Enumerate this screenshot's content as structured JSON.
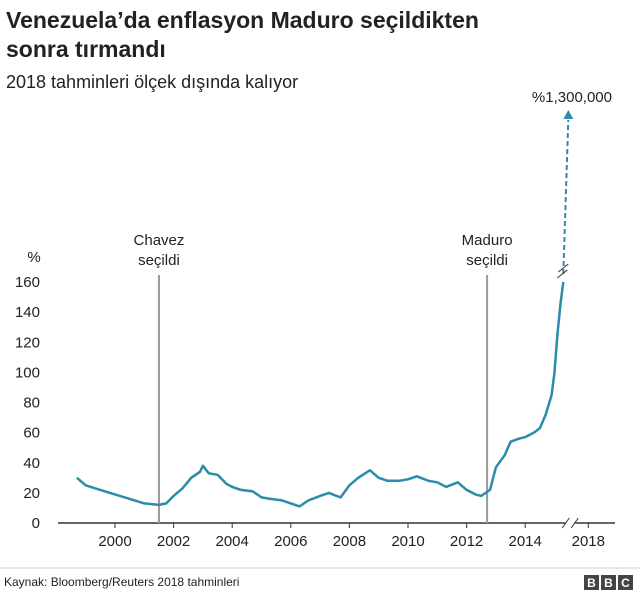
{
  "chart_data": {
    "type": "line",
    "title": [
      "Venezuela’da enflasyon Maduro seçildikten",
      "sonra tırmandı"
    ],
    "subtitle": "2018 tahminleri ölçek dışında kalıyor",
    "y_unit": "%",
    "forecast_label": "%1,300,000",
    "events": [
      {
        "x": 2001.5,
        "label": [
          "Chavez",
          "seçildi"
        ]
      },
      {
        "x": 2012.7,
        "label": [
          "Maduro",
          "seçildi"
        ]
      }
    ],
    "x": [
      1998.7,
      1999.0,
      1999.5,
      2000.0,
      2000.5,
      2001.0,
      2001.5,
      2001.75,
      2002.0,
      2002.3,
      2002.6,
      2002.9,
      2003.0,
      2003.2,
      2003.5,
      2003.8,
      2004.0,
      2004.3,
      2004.7,
      2005.0,
      2005.3,
      2005.7,
      2006.0,
      2006.3,
      2006.6,
      2007.0,
      2007.3,
      2007.7,
      2008.0,
      2008.3,
      2008.7,
      2009.0,
      2009.3,
      2009.7,
      2010.0,
      2010.3,
      2010.7,
      2011.0,
      2011.3,
      2011.7,
      2012.0,
      2012.3,
      2012.5,
      2012.8,
      2013.0,
      2013.3,
      2013.5,
      2013.8,
      2014.0,
      2014.3,
      2014.5,
      2014.7,
      2014.9,
      2015.0,
      2015.1,
      2015.2,
      2015.3
    ],
    "series": [
      {
        "name": "Enflasyon",
        "color": "#2a8ca8",
        "values": [
          30,
          25,
          22,
          19,
          16,
          13,
          12,
          13,
          18,
          23,
          30,
          34,
          38,
          33,
          32,
          26,
          24,
          22,
          21,
          17,
          16,
          15,
          13,
          11,
          15,
          18,
          20,
          17,
          25,
          30,
          35,
          30,
          28,
          28,
          29,
          31,
          28,
          27,
          24,
          27,
          22,
          19,
          18,
          22,
          37,
          45,
          54,
          56,
          57,
          60,
          63,
          72,
          85,
          100,
          125,
          145,
          160
        ]
      }
    ],
    "xticks": [
      2000,
      2002,
      2004,
      2006,
      2008,
      2010,
      2012,
      2014,
      2018
    ],
    "ylim": [
      0,
      160
    ],
    "yticks": [
      0,
      20,
      40,
      60,
      80,
      100,
      120,
      140,
      160
    ],
    "grid": false,
    "source": "Kaynak: Bloomberg/Reuters 2018 tahminleri",
    "logo": "BBC"
  }
}
